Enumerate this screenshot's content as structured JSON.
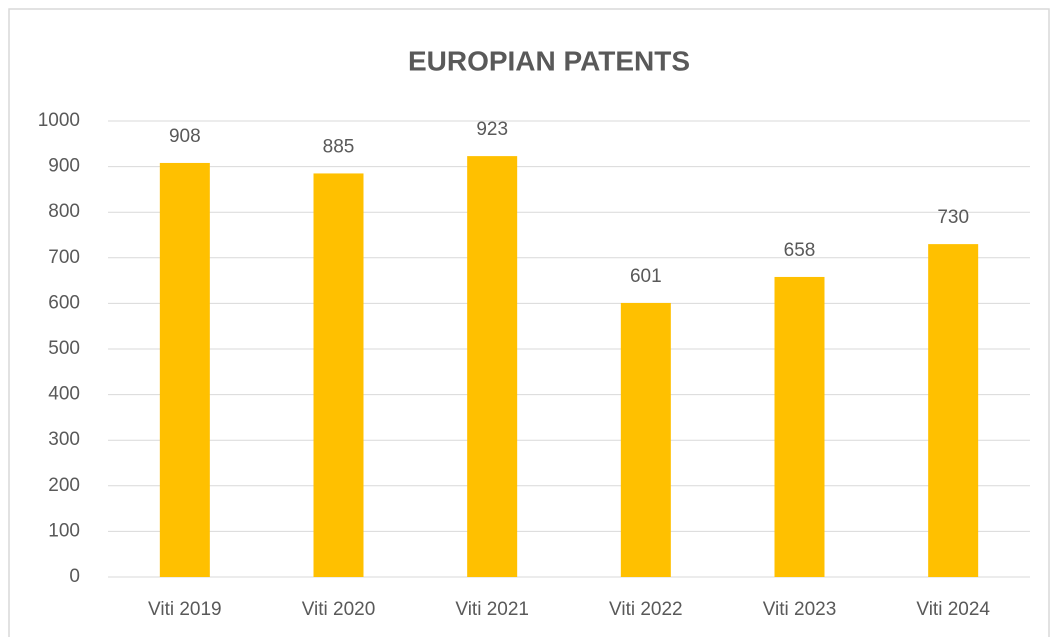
{
  "chart_data": {
    "type": "bar",
    "title": "EUROPIAN PATENTS",
    "categories": [
      "Viti 2019",
      "Viti 2020",
      "Viti 2021",
      "Viti 2022",
      "Viti 2023",
      "Viti 2024"
    ],
    "values": [
      908,
      885,
      923,
      601,
      658,
      730
    ],
    "color": "#ffc000",
    "ylim": [
      0,
      1000
    ],
    "yticks": [
      0,
      100,
      200,
      300,
      400,
      500,
      600,
      700,
      800,
      900,
      1000
    ],
    "grid": true
  }
}
